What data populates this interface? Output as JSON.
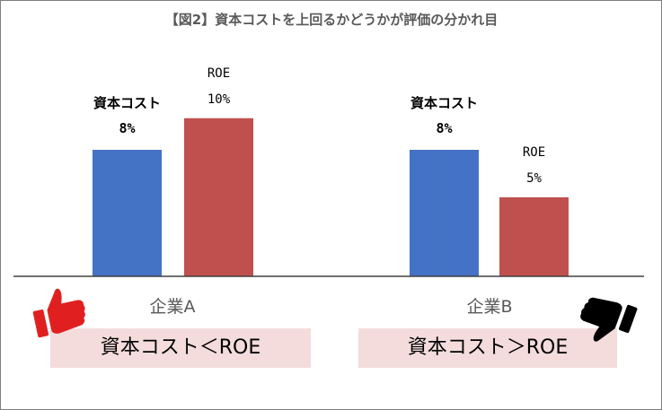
{
  "chart_data": {
    "type": "bar",
    "title": "【図2】資本コストを上回るかどうかが評価の分かれ目",
    "categories": [
      "企業A",
      "企業B"
    ],
    "series": [
      {
        "name": "資本コスト",
        "color": "#4472c4",
        "values": [
          8,
          8
        ],
        "labels": [
          "8%",
          "8%"
        ]
      },
      {
        "name": "ROE",
        "color": "#c0504d",
        "values": [
          10,
          5
        ],
        "labels": [
          "10%",
          "5%"
        ]
      }
    ],
    "ylim": [
      0,
      14
    ],
    "grid": false,
    "legend": "none",
    "xlabel": "",
    "ylabel": ""
  },
  "comparisons": [
    {
      "text": "資本コスト＜ROE",
      "icon": "thumbs-up-icon",
      "icon_color": "#e02020"
    },
    {
      "text": "資本コスト＞ROE",
      "icon": "thumbs-down-icon",
      "icon_color": "#000000"
    }
  ]
}
